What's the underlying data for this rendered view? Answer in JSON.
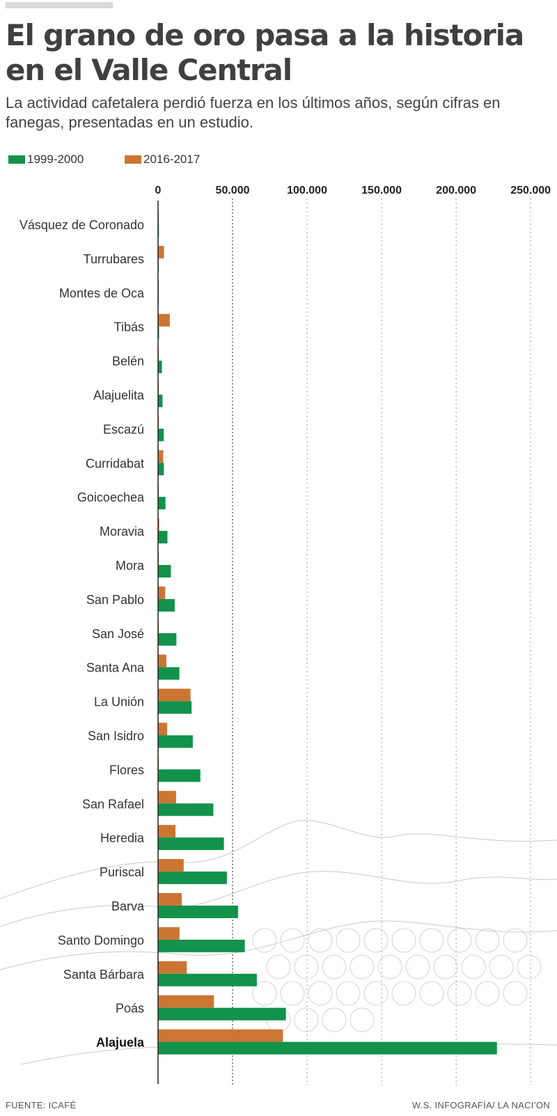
{
  "title": "El grano de oro pasa a la historia en el Valle Central",
  "subtitle": "La actividad cafetalera perdió fuerza en los últimos años, según cifras en fanegas, presentadas en un estudio.",
  "footer": {
    "source": "FUENTE: ICAFÉ",
    "credit": "W.S. INFOGRAFÍA/ LA NACI’ON"
  },
  "colors": {
    "series_1999": "#12924a",
    "series_2016": "#cc7533",
    "gridline": "#9e9e9e",
    "axis": "#222222"
  },
  "chart_data": {
    "type": "bar",
    "orientation": "horizontal",
    "title": "",
    "xlabel": "",
    "ylabel": "",
    "xlim": [
      0,
      260000
    ],
    "ticks": [
      0,
      50000,
      100000,
      150000,
      200000,
      250000
    ],
    "tick_labels": [
      "0",
      "50.000",
      "100.000",
      "150.000",
      "200.000",
      "250.000"
    ],
    "grid": true,
    "legend_position": "top-left",
    "categories": [
      "Vásquez de Coronado",
      "Turrubares",
      "Montes de Oca",
      "Tibás",
      "Belén",
      "Alajuelita",
      "Escazú",
      "Curridabat",
      "Goicoechea",
      "Moravia",
      "Mora",
      "San Pablo",
      "San José",
      "Santa Ana",
      "La Unión",
      "San Isidro",
      "Flores",
      "San Rafael",
      "Heredia",
      "Puriscal",
      "Barva",
      "Santo Domingo",
      "Santa Bárbara",
      "Poás",
      "Alajuela"
    ],
    "highlight_category": "Alajuela",
    "series": [
      {
        "name": "1999-2000",
        "color": "#12924a",
        "values": [
          600,
          400,
          500,
          700,
          2600,
          3000,
          3800,
          3900,
          5000,
          6300,
          8600,
          11200,
          12300,
          14300,
          22500,
          23300,
          28400,
          37100,
          44200,
          46200,
          53700,
          58200,
          66300,
          85800,
          227400
        ]
      },
      {
        "name": "2016-2017",
        "color": "#cc7533",
        "values": [
          100,
          4000,
          300,
          7900,
          100,
          100,
          500,
          3500,
          200,
          800,
          200,
          4800,
          200,
          5600,
          21800,
          6100,
          100,
          12100,
          11700,
          17200,
          15900,
          14400,
          19300,
          37500,
          83800
        ]
      }
    ]
  }
}
